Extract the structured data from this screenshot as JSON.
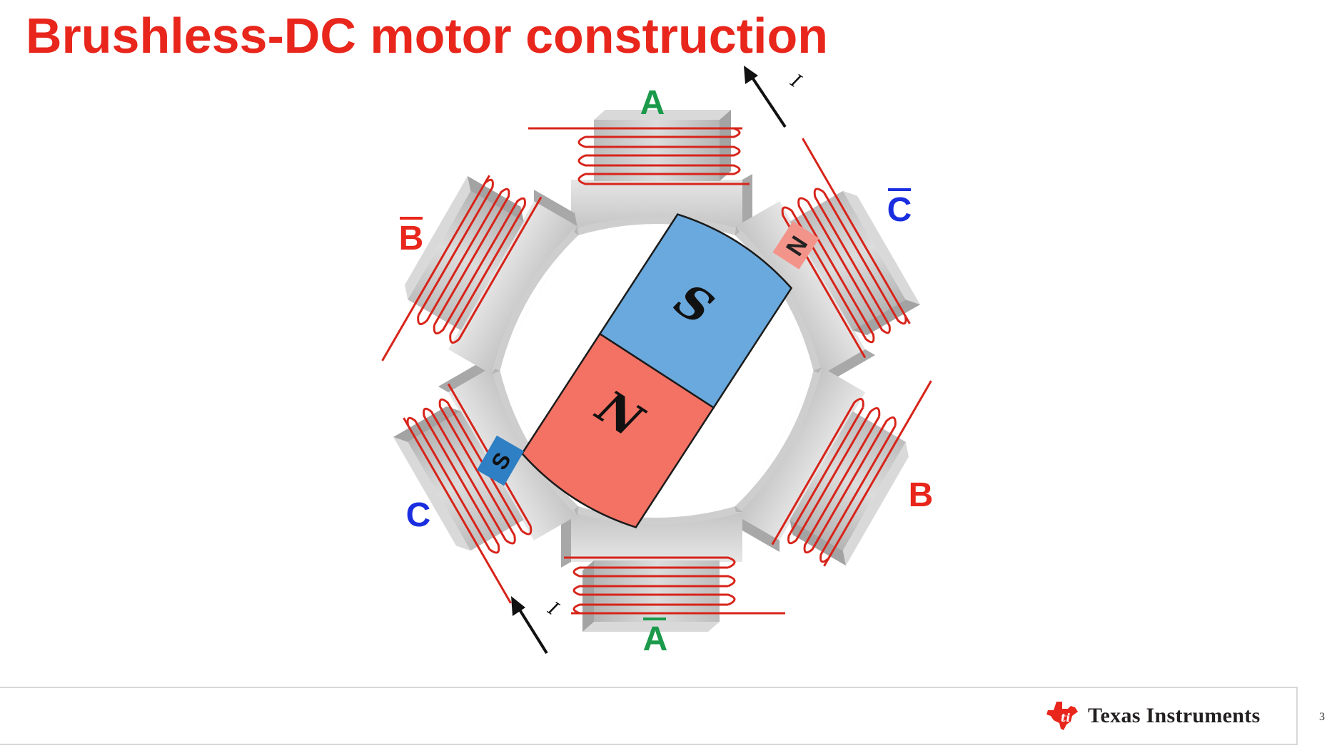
{
  "slide": {
    "title": "Brushless-DC motor construction",
    "page_number": "3"
  },
  "labels": {
    "pole_a": "A",
    "pole_a_bar": "A",
    "pole_b": "B",
    "pole_b_bar": "B",
    "pole_c": "C",
    "pole_c_bar": "C",
    "rotor_south": "S",
    "rotor_north": "N",
    "stator_north": "N",
    "stator_south": "S",
    "current_top": "I",
    "current_bottom": "I"
  },
  "footer": {
    "company": "Texas Instruments"
  },
  "colors": {
    "title": "#e8261c",
    "phase_a": "#1a9a4a",
    "phase_b": "#e8261c",
    "phase_c": "#1a2ee0",
    "rotor_south": "#6aa9dd",
    "rotor_north": "#f47264",
    "winding": "#d7241a",
    "stator": "#cfcfcf"
  }
}
